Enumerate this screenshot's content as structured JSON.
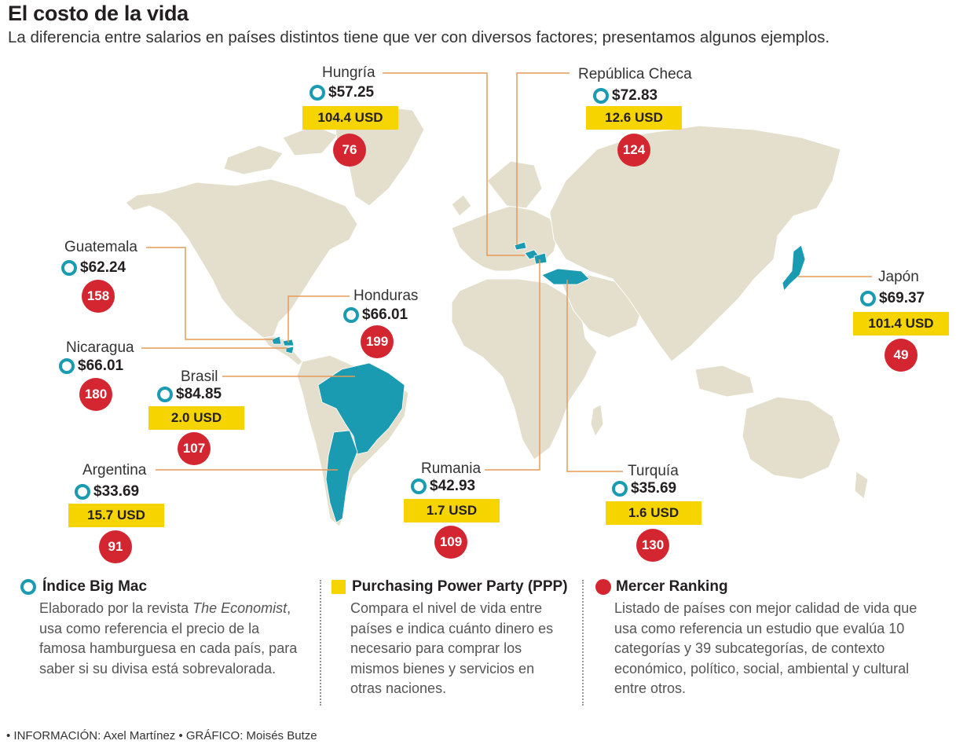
{
  "title": "El costo de la vida",
  "subtitle": "La diferencia entre salarios en países distintos tiene que ver con diversos factores; presentamos algunos ejemplos.",
  "countries": [
    {
      "id": "hungria",
      "name": "Hungría",
      "bigmac": "$57.25",
      "ppp": "104.4 USD",
      "rank": "76"
    },
    {
      "id": "checa",
      "name": "República Checa",
      "bigmac": "$72.83",
      "ppp": "12.6 USD",
      "rank": "124"
    },
    {
      "id": "guatemala",
      "name": "Guatemala",
      "bigmac": "$62.24",
      "rank": "158"
    },
    {
      "id": "honduras",
      "name": "Honduras",
      "bigmac": "$66.01",
      "rank": "199"
    },
    {
      "id": "nicaragua",
      "name": "Nicaragua",
      "bigmac": "$66.01",
      "rank": "180"
    },
    {
      "id": "brasil",
      "name": "Brasil",
      "bigmac": "$84.85",
      "ppp": "2.0 USD",
      "rank": "107"
    },
    {
      "id": "argentina",
      "name": "Argentina",
      "bigmac": "$33.69",
      "ppp": "15.7 USD",
      "rank": "91"
    },
    {
      "id": "rumania",
      "name": "Rumania",
      "bigmac": "$42.93",
      "ppp": "1.7 USD",
      "rank": "109"
    },
    {
      "id": "turquia",
      "name": "Turquía",
      "bigmac": "$35.69",
      "ppp": "1.6 USD",
      "rank": "130"
    },
    {
      "id": "japon",
      "name": "Japón",
      "bigmac": "$69.37",
      "ppp": "101.4 USD",
      "rank": "49"
    }
  ],
  "legend": {
    "bigmac": {
      "title": "Índice Big Mac",
      "text_before": "Elaborado por la revista ",
      "text_em": "The Economist",
      "text_after": ", usa como referencia el precio de la famosa hamburguesa en cada país, para saber si su divisa está sobrevalorada."
    },
    "ppp": {
      "title": "Purchasing Power Party (PPP)",
      "text": "Compara el nivel de vida entre países e indica cuánto dinero es necesario para comprar los mismos bienes y servicios en otras naciones."
    },
    "mercer": {
      "title": "Mercer Ranking",
      "text": "Listado de países con mejor calidad de vida que usa como referencia un estudio que evalúa 10 categorías y 39 subcategorías, de contexto económico, político, social, ambiental y cultural entre otros."
    }
  },
  "credits": "• INFORMACIÓN: Axel Martínez  • GRÁFICO: Moisés Butze",
  "colors": {
    "land": "#e3dfcc",
    "highlight": "#1a9bb1",
    "ppp": "#f6d400",
    "rank": "#d42631",
    "leader": "#e69a5a"
  }
}
